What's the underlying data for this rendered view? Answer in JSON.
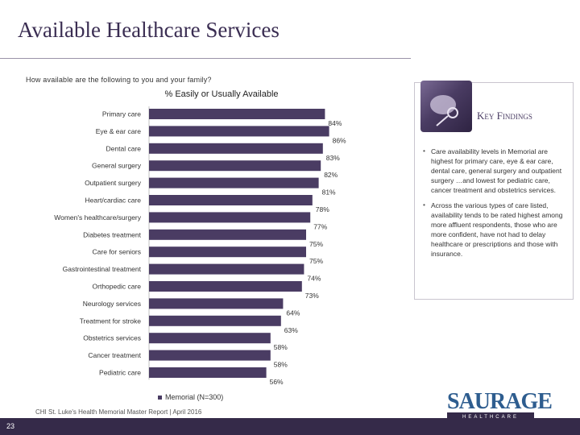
{
  "slide": {
    "title": "Available Healthcare Services",
    "question": "How available are the following to you and your family?",
    "page_number": "23",
    "source": "CHI St. Luke's Health Memorial Master Report | April 2016"
  },
  "key_findings": {
    "heading": "Key Findings",
    "items": [
      "Care availability levels in Memorial are highest for primary care, eye & ear care, dental care, general surgery and outpatient surgery …and lowest for pediatric care, cancer treatment and obstetrics services.",
      "Across the various types of care listed, availability tends to be rated highest among more affluent respondents, those who are more confident, have not had to delay healthcare or prescriptions and those with insurance."
    ]
  },
  "logo": {
    "main": "SAURAGE",
    "sub": "HEALTHCARE"
  },
  "colors": {
    "bar": "#4a3c63",
    "footer": "#352a49",
    "title": "#3a2d52"
  },
  "chart_data": {
    "type": "bar",
    "orientation": "horizontal",
    "title": "% Easily or Usually Available",
    "categories": [
      "Primary care",
      "Eye & ear care",
      "Dental care",
      "General surgery",
      "Outpatient surgery",
      "Heart/cardiac care",
      "Women's healthcare/surgery",
      "Diabetes treatment",
      "Care for seniors",
      "Gastrointestinal treatment",
      "Orthopedic care",
      "Neurology services",
      "Treatment for stroke",
      "Obstetrics services",
      "Cancer treatment",
      "Pediatric care"
    ],
    "values": [
      84,
      86,
      83,
      82,
      81,
      78,
      77,
      75,
      75,
      74,
      73,
      64,
      63,
      58,
      58,
      56
    ],
    "labels": [
      "84%",
      "86%",
      "83%",
      "82%",
      "81%",
      "78%",
      "77%",
      "75%",
      "75%",
      "74%",
      "73%",
      "64%",
      "63%",
      "58%",
      "58%",
      "56%"
    ],
    "series": [
      {
        "name": "Memorial (N=300)"
      }
    ],
    "xlim": [
      0,
      100
    ],
    "legend": "bottom",
    "grid": false
  }
}
